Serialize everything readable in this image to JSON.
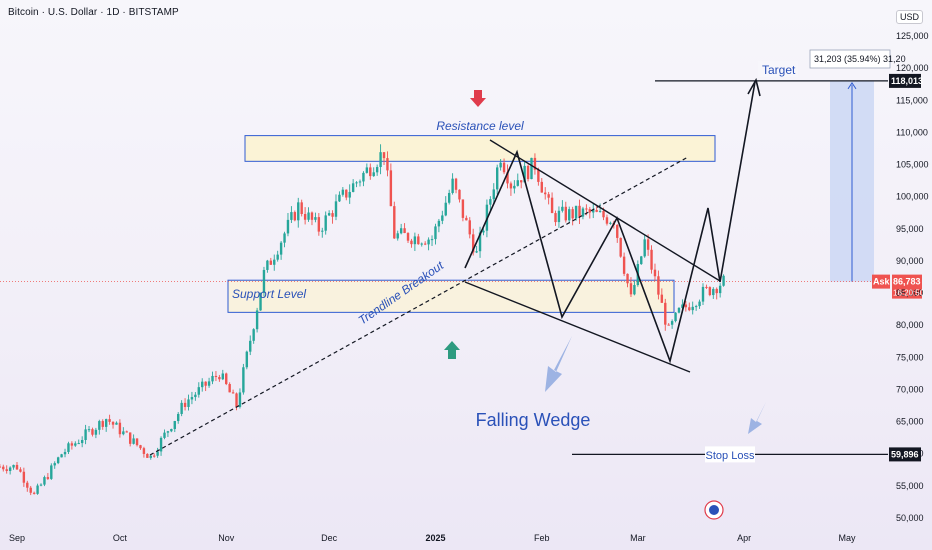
{
  "header": {
    "title": "Bitcoin · U.S. Dollar · 1D · BITSTAMP",
    "currency": "USD"
  },
  "colors": {
    "up": "#26a69a",
    "down": "#ef5350",
    "annotation_blue": "#2a51b8",
    "zone_fill": "#fbf3d6",
    "zone_stroke": "#2f5bd1",
    "measure_fill": "#c9d6f4",
    "price_label_bg": "#ef5350",
    "level_label_bg": "#131722"
  },
  "annotations": {
    "resistance": "Resistance level",
    "support": "Support Level",
    "trendline": "Trendline Breakout",
    "wedge": "Falling Wedge",
    "target": "Target",
    "stop_loss": "Stop Loss",
    "measure": "31,203 (35.94%) 31,20"
  },
  "labels": {
    "target_price": "118,013",
    "stop_price": "59,896",
    "ask": "Ask",
    "last_price": "86,783",
    "countdown": "16:20:50"
  },
  "chart_data": {
    "type": "candlestick",
    "title": "Bitcoin · U.S. Dollar · 1D · BITSTAMP",
    "y_ticks": [
      "125,000",
      "120,000",
      "115,000",
      "110,000",
      "105,000",
      "100,000",
      "95,000",
      "90,000",
      "85,000",
      "80,000",
      "75,000",
      "70,000",
      "65,000",
      "60,000",
      "55,000",
      "50,000"
    ],
    "y_values": [
      125000,
      120000,
      115000,
      110000,
      105000,
      100000,
      95000,
      90000,
      85000,
      80000,
      75000,
      70000,
      65000,
      60000,
      55000,
      50000
    ],
    "x_ticks": [
      "Sep",
      "Oct",
      "Nov",
      "Dec",
      "2025",
      "Feb",
      "Mar",
      "Apr",
      "May"
    ],
    "ylim": [
      49000,
      127000
    ],
    "levels": {
      "resistance_zone": [
        105500,
        109500
      ],
      "support_zone": [
        82000,
        87000
      ],
      "target": 118013,
      "stop_loss": 59896,
      "last": 86783
    },
    "anchors": [
      [
        "2024-09-01",
        58000
      ],
      [
        "2024-09-06",
        53500
      ],
      [
        "2024-09-14",
        60000
      ],
      [
        "2024-09-27",
        65500
      ],
      [
        "2024-10-10",
        59500
      ],
      [
        "2024-10-20",
        68000
      ],
      [
        "2024-10-30",
        72500
      ],
      [
        "2024-11-04",
        67500
      ],
      [
        "2024-11-12",
        88000
      ],
      [
        "2024-11-22",
        98500
      ],
      [
        "2024-11-28",
        95000
      ],
      [
        "2024-12-05",
        100000
      ],
      [
        "2024-12-17",
        107000
      ],
      [
        "2024-12-20",
        94000
      ],
      [
        "2024-12-31",
        93500
      ],
      [
        "2025-01-06",
        102000
      ],
      [
        "2025-01-13",
        91000
      ],
      [
        "2025-01-20",
        106500
      ],
      [
        "2025-01-23",
        102000
      ],
      [
        "2025-01-30",
        105000
      ],
      [
        "2025-02-04",
        97000
      ],
      [
        "2025-02-14",
        97500
      ],
      [
        "2025-02-22",
        96500
      ],
      [
        "2025-02-27",
        84000
      ],
      [
        "2025-03-03",
        93000
      ],
      [
        "2025-03-10",
        79000
      ],
      [
        "2025-03-13",
        82000
      ],
      [
        "2025-03-20",
        85000
      ],
      [
        "2025-03-26",
        86783
      ]
    ],
    "legend": "none",
    "grid": false
  }
}
